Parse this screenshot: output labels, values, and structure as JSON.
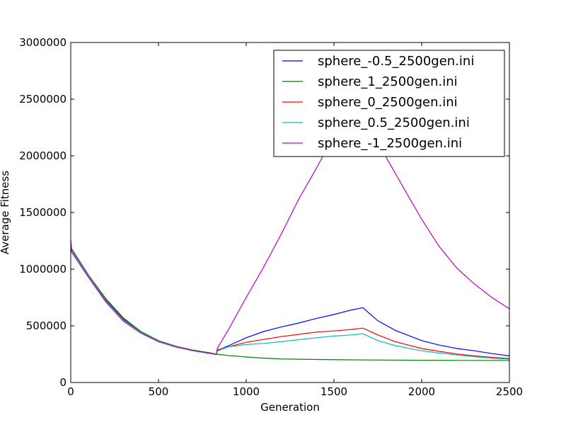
{
  "chart_data": {
    "type": "line",
    "title": "",
    "xlabel": "Generation",
    "ylabel": "Average Fitness",
    "xlim": [
      0,
      2500
    ],
    "ylim": [
      0,
      3000000
    ],
    "xticks": [
      0,
      500,
      1000,
      1500,
      2000,
      2500
    ],
    "yticks": [
      0,
      500000,
      1000000,
      1500000,
      2000000,
      2500000,
      3000000
    ],
    "xtick_labels": [
      "0",
      "500",
      "1000",
      "1500",
      "2000",
      "2500"
    ],
    "ytick_labels": [
      "0",
      "500000",
      "1000000",
      "1500000",
      "2000000",
      "2500000",
      "3000000"
    ],
    "grid": false,
    "legend_position": "top-right",
    "series": [
      {
        "name": "sphere_-0.5_2500gen.ini",
        "color": "#0000ff",
        "x": [
          0,
          5,
          100,
          200,
          300,
          400,
          500,
          600,
          700,
          800,
          830,
          835,
          900,
          1000,
          1100,
          1200,
          1300,
          1400,
          1500,
          1600,
          1665,
          1750,
          1850,
          2000,
          2100,
          2200,
          2300,
          2400,
          2500
        ],
        "y": [
          1250000,
          1180000,
          950000,
          730000,
          560000,
          440000,
          365000,
          315000,
          280000,
          255000,
          250000,
          285000,
          325000,
          395000,
          450000,
          490000,
          525000,
          565000,
          600000,
          640000,
          660000,
          545000,
          460000,
          370000,
          330000,
          300000,
          280000,
          255000,
          235000
        ]
      },
      {
        "name": "sphere_1_2500gen.ini",
        "color": "#008000",
        "x": [
          0,
          5,
          100,
          200,
          300,
          400,
          500,
          600,
          700,
          800,
          830,
          900,
          1000,
          1100,
          1200,
          1400,
          1600,
          1800,
          2000,
          2200,
          2500
        ],
        "y": [
          1250000,
          1180000,
          950000,
          740000,
          570000,
          450000,
          370000,
          320000,
          285000,
          260000,
          250000,
          238000,
          225000,
          215000,
          208000,
          203000,
          200000,
          198000,
          196000,
          195000,
          194000
        ]
      },
      {
        "name": "sphere_0_2500gen.ini",
        "color": "#ff0000",
        "x": [
          0,
          5,
          100,
          200,
          300,
          400,
          500,
          600,
          700,
          800,
          830,
          835,
          900,
          1000,
          1100,
          1200,
          1300,
          1400,
          1500,
          1600,
          1665,
          1750,
          1850,
          2000,
          2100,
          2200,
          2300,
          2400,
          2500
        ],
        "y": [
          1250000,
          1170000,
          945000,
          725000,
          555000,
          440000,
          365000,
          315000,
          280000,
          255000,
          248000,
          280000,
          315000,
          355000,
          380000,
          405000,
          425000,
          445000,
          455000,
          468000,
          480000,
          420000,
          360000,
          300000,
          275000,
          252000,
          235000,
          222000,
          212000
        ]
      },
      {
        "name": "sphere_0.5_2500gen.ini",
        "color": "#00bfbf",
        "x": [
          0,
          5,
          100,
          200,
          300,
          400,
          500,
          600,
          700,
          800,
          830,
          835,
          900,
          1000,
          1100,
          1200,
          1300,
          1400,
          1500,
          1600,
          1665,
          1750,
          1850,
          2000,
          2100,
          2200,
          2300,
          2400,
          2500
        ],
        "y": [
          1250000,
          1165000,
          940000,
          720000,
          550000,
          440000,
          365000,
          315000,
          280000,
          255000,
          248000,
          290000,
          315000,
          335000,
          345000,
          360000,
          378000,
          395000,
          410000,
          420000,
          430000,
          370000,
          325000,
          280000,
          260000,
          243000,
          228000,
          215000,
          205000
        ]
      },
      {
        "name": "sphere_-1_2500gen.ini",
        "color": "#bf00bf",
        "x": [
          0,
          5,
          100,
          200,
          300,
          400,
          500,
          600,
          700,
          800,
          830,
          835,
          900,
          1000,
          1100,
          1200,
          1300,
          1400,
          1500,
          1600,
          1665,
          1700,
          1800,
          1900,
          2000,
          2100,
          2200,
          2300,
          2400,
          2500
        ],
        "y": [
          1250000,
          1150000,
          930000,
          710000,
          540000,
          435000,
          360000,
          313000,
          280000,
          255000,
          248000,
          300000,
          470000,
          750000,
          1020000,
          1310000,
          1620000,
          1890000,
          2180000,
          2470000,
          2620000,
          2320000,
          1980000,
          1710000,
          1440000,
          1200000,
          1010000,
          870000,
          750000,
          650000
        ]
      }
    ]
  }
}
